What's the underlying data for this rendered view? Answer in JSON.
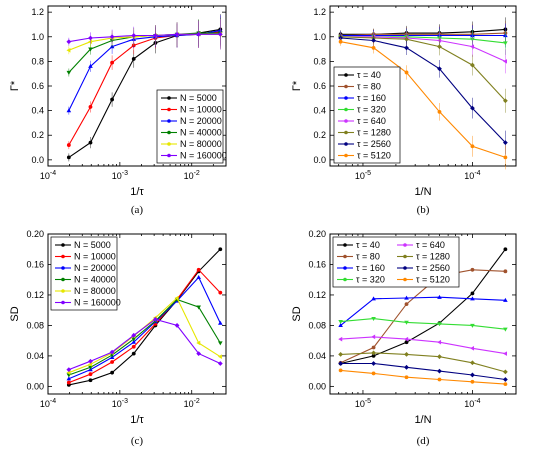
{
  "colors": {
    "N=5000": "#000000",
    "N=10000": "#ff0000",
    "N=20000": "#0000ff",
    "N=40000": "#008000",
    "N=80000": "#e6e600",
    "N=160000": "#8000ff",
    "tau=40": "#000000",
    "tau=80": "#a0522d",
    "tau=160": "#0000ff",
    "tau=320": "#33dd33",
    "tau=640": "#cc33ff",
    "tau=1280": "#808020",
    "tau=2560": "#000080",
    "tau=5120": "#ff8800"
  },
  "chart_data": [
    {
      "panel": "(a)",
      "type": "line",
      "xlabel": "1/τ",
      "ylabel": "Γ*",
      "xscale": "log",
      "xlim": [
        0.0001,
        0.03
      ],
      "ylim": [
        -0.05,
        1.25
      ],
      "xticks": [
        {
          "v": 0.0001,
          "b": "10",
          "e": "-4"
        },
        {
          "v": 0.001,
          "b": "10",
          "e": "-3"
        },
        {
          "v": 0.01,
          "b": "10",
          "e": "-2"
        }
      ],
      "yticks": [
        "0.0",
        "0.2",
        "0.4",
        "0.6",
        "0.8",
        "1.0",
        "1.2"
      ],
      "legend_position": "bottom-right",
      "x": [
        0.000195,
        0.00039,
        0.00078,
        0.00156,
        0.003125,
        0.00625,
        0.0125,
        0.025
      ],
      "series": [
        {
          "name": "N = 5000",
          "values": [
            0.02,
            0.14,
            0.49,
            0.82,
            0.95,
            1.01,
            1.03,
            1.06
          ]
        },
        {
          "name": "N = 10000",
          "values": [
            0.12,
            0.43,
            0.79,
            0.93,
            0.99,
            1.01,
            1.02,
            1.04
          ]
        },
        {
          "name": "N = 20000",
          "values": [
            0.4,
            0.76,
            0.92,
            0.98,
            1.0,
            1.01,
            1.02,
            1.05
          ]
        },
        {
          "name": "N = 40000",
          "values": [
            0.71,
            0.9,
            0.97,
            1.0,
            1.01,
            1.02,
            1.03,
            1.03
          ]
        },
        {
          "name": "N = 80000",
          "values": [
            0.89,
            0.96,
            0.99,
            1.0,
            1.01,
            1.02,
            1.02,
            1.02
          ]
        },
        {
          "name": "N = 160000",
          "values": [
            0.96,
            0.99,
            1.0,
            1.01,
            1.01,
            1.02,
            1.02,
            1.02
          ]
        }
      ]
    },
    {
      "panel": "(b)",
      "type": "line",
      "xlabel": "1/N",
      "ylabel": "Γ*",
      "xscale": "log",
      "xlim": [
        5e-06,
        0.00025
      ],
      "ylim": [
        -0.05,
        1.25
      ],
      "xticks": [
        {
          "v": 1e-05,
          "b": "10",
          "e": "-5"
        },
        {
          "v": 0.0001,
          "b": "10",
          "e": "-4"
        }
      ],
      "yticks": [
        "0.0",
        "0.2",
        "0.4",
        "0.6",
        "0.8",
        "1.0",
        "1.2"
      ],
      "legend_position": "bottom-left",
      "x": [
        6.25e-06,
        1.25e-05,
        2.5e-05,
        5e-05,
        0.0001,
        0.0002
      ],
      "series": [
        {
          "name": "τ = 40",
          "values": [
            1.02,
            1.02,
            1.03,
            1.03,
            1.04,
            1.06
          ]
        },
        {
          "name": "τ = 80",
          "values": [
            1.01,
            1.02,
            1.02,
            1.02,
            1.02,
            1.03
          ]
        },
        {
          "name": "τ = 160",
          "values": [
            1.01,
            1.01,
            1.01,
            1.01,
            1.01,
            1.01
          ]
        },
        {
          "name": "τ = 320",
          "values": [
            1.0,
            1.0,
            1.0,
            0.99,
            0.98,
            0.95
          ]
        },
        {
          "name": "τ = 640",
          "values": [
            1.0,
            1.0,
            0.99,
            0.97,
            0.92,
            0.8
          ]
        },
        {
          "name": "τ = 1280",
          "values": [
            1.0,
            0.99,
            0.98,
            0.92,
            0.77,
            0.48
          ]
        },
        {
          "name": "τ = 2560",
          "values": [
            0.99,
            0.97,
            0.91,
            0.74,
            0.42,
            0.14
          ]
        },
        {
          "name": "τ = 5120",
          "values": [
            0.96,
            0.91,
            0.71,
            0.39,
            0.11,
            0.02
          ]
        }
      ]
    },
    {
      "panel": "(c)",
      "type": "line",
      "xlabel": "1/τ",
      "ylabel": "SD",
      "xscale": "log",
      "xlim": [
        0.0001,
        0.03
      ],
      "ylim": [
        -0.01,
        0.2
      ],
      "xticks": [
        {
          "v": 0.0001,
          "b": "10",
          "e": "-4"
        },
        {
          "v": 0.001,
          "b": "10",
          "e": "-3"
        },
        {
          "v": 0.01,
          "b": "10",
          "e": "-2"
        }
      ],
      "yticks": [
        "0.00",
        "0.04",
        "0.08",
        "0.12",
        "0.16",
        "0.20"
      ],
      "legend_position": "top-left",
      "x": [
        0.000195,
        0.00039,
        0.00078,
        0.00156,
        0.003125,
        0.00625,
        0.0125,
        0.025
      ],
      "series": [
        {
          "name": "N = 5000",
          "values": [
            0.002,
            0.008,
            0.018,
            0.043,
            0.08,
            0.113,
            0.151,
            0.18
          ]
        },
        {
          "name": "N = 10000",
          "values": [
            0.005,
            0.016,
            0.032,
            0.052,
            0.082,
            0.114,
            0.153,
            0.123
          ]
        },
        {
          "name": "N = 20000",
          "values": [
            0.01,
            0.022,
            0.038,
            0.058,
            0.085,
            0.112,
            0.143,
            0.083
          ]
        },
        {
          "name": "N = 40000",
          "values": [
            0.015,
            0.025,
            0.041,
            0.062,
            0.086,
            0.114,
            0.104,
            0.057
          ]
        },
        {
          "name": "N = 80000",
          "values": [
            0.018,
            0.029,
            0.044,
            0.066,
            0.09,
            0.116,
            0.057,
            0.039
          ]
        },
        {
          "name": "N = 160000",
          "values": [
            0.022,
            0.033,
            0.045,
            0.067,
            0.088,
            0.08,
            0.043,
            0.03
          ]
        }
      ]
    },
    {
      "panel": "(d)",
      "type": "line",
      "xlabel": "1/N",
      "ylabel": "SD",
      "xscale": "log",
      "xlim": [
        5e-06,
        0.00025
      ],
      "ylim": [
        -0.01,
        0.2
      ],
      "xticks": [
        {
          "v": 1e-05,
          "b": "10",
          "e": "-5"
        },
        {
          "v": 0.0001,
          "b": "10",
          "e": "-4"
        }
      ],
      "yticks": [
        "0.00",
        "0.04",
        "0.08",
        "0.12",
        "0.16",
        "0.20"
      ],
      "legend_position": "top-left",
      "legend_columns": 2,
      "x": [
        6.25e-06,
        1.25e-05,
        2.5e-05,
        5e-05,
        0.0001,
        0.0002
      ],
      "series": [
        {
          "name": "τ = 40",
          "values": [
            0.03,
            0.04,
            0.058,
            0.083,
            0.122,
            0.18
          ]
        },
        {
          "name": "τ = 80",
          "values": [
            0.031,
            0.051,
            0.108,
            0.145,
            0.153,
            0.151
          ]
        },
        {
          "name": "τ = 160",
          "values": [
            0.08,
            0.115,
            0.116,
            0.117,
            0.115,
            0.113
          ]
        },
        {
          "name": "τ = 320",
          "values": [
            0.085,
            0.089,
            0.084,
            0.082,
            0.08,
            0.075
          ]
        },
        {
          "name": "τ = 640",
          "values": [
            0.062,
            0.065,
            0.062,
            0.058,
            0.05,
            0.043
          ]
        },
        {
          "name": "τ = 1280",
          "values": [
            0.042,
            0.044,
            0.042,
            0.039,
            0.031,
            0.019
          ]
        },
        {
          "name": "τ = 2560",
          "values": [
            0.03,
            0.03,
            0.025,
            0.02,
            0.015,
            0.009
          ]
        },
        {
          "name": "τ = 5120",
          "values": [
            0.021,
            0.017,
            0.012,
            0.009,
            0.006,
            0.003
          ]
        }
      ]
    }
  ]
}
